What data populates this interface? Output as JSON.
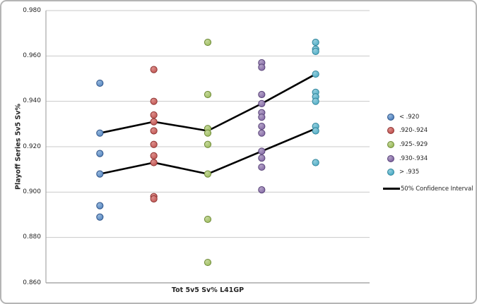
{
  "chart_data": {
    "type": "scatter",
    "title": "",
    "xlabel": "Tot 5v5 Sv% L41GP",
    "ylabel": "Playoff Series 5v5 Sv%",
    "ylim": [
      0.86,
      0.98
    ],
    "y_ticks": [
      0.98,
      0.96,
      0.94,
      0.92,
      0.9,
      0.88,
      0.86
    ],
    "y_tick_labels": [
      "0.980",
      "0.960",
      "0.940",
      "0.920",
      "0.900",
      "0.880",
      "0.860"
    ],
    "grid": true,
    "legend_position": "right",
    "num_x_groups": 5,
    "series": [
      {
        "label": "< .920",
        "x_group": 1,
        "color": "#4f81bd",
        "color_light": "#94b6dc",
        "color_border": "#2f5488",
        "values": [
          0.948,
          0.926,
          0.917,
          0.908,
          0.894,
          0.889
        ]
      },
      {
        "label": ".920-.924",
        "x_group": 2,
        "color": "#c0504d",
        "color_light": "#dc8f8c",
        "color_border": "#8e3634",
        "values": [
          0.954,
          0.94,
          0.934,
          0.931,
          0.927,
          0.921,
          0.916,
          0.913,
          0.898,
          0.897
        ]
      },
      {
        "label": ".925-.929",
        "x_group": 3,
        "color": "#9bbb59",
        "color_light": "#c4d79b",
        "color_border": "#6f8b39",
        "values": [
          0.966,
          0.943,
          0.928,
          0.926,
          0.921,
          0.908,
          0.888,
          0.869
        ]
      },
      {
        "label": ".930-.934",
        "x_group": 4,
        "color": "#8064a2",
        "color_light": "#b3a2c7",
        "color_border": "#5a4579",
        "values": [
          0.957,
          0.955,
          0.943,
          0.939,
          0.935,
          0.933,
          0.929,
          0.926,
          0.918,
          0.915,
          0.911,
          0.901
        ]
      },
      {
        "label": "> .935",
        "x_group": 5,
        "color": "#4bacc6",
        "color_light": "#93cddc",
        "color_border": "#31859b",
        "values": [
          0.966,
          0.963,
          0.962,
          0.952,
          0.944,
          0.942,
          0.94,
          0.929,
          0.927,
          0.913
        ]
      }
    ],
    "confidence_interval": {
      "label": "50% Confidence Interval",
      "color": "#000000",
      "upper": [
        0.926,
        0.931,
        0.927,
        0.939,
        0.952
      ],
      "lower": [
        0.908,
        0.913,
        0.908,
        0.918,
        0.928
      ]
    }
  }
}
